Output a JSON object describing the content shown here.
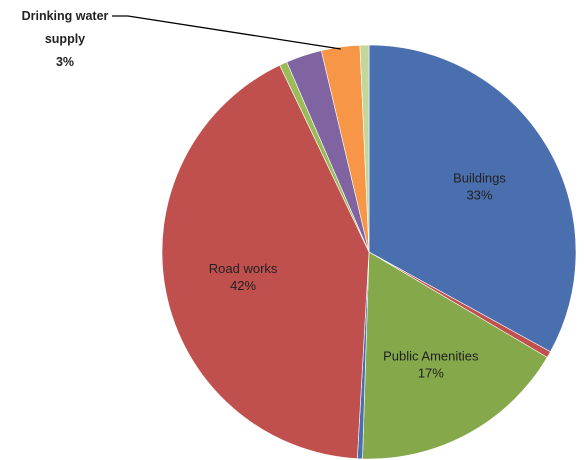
{
  "chart_data": {
    "type": "pie",
    "title": "",
    "start_angle_deg": 0,
    "direction": "clockwise",
    "slices": [
      {
        "name": "Buildings",
        "value": 33,
        "color": "#4a6fae",
        "label": {
          "name": "Buildings",
          "pct": "33%"
        }
      },
      {
        "name": "",
        "value": 0.5,
        "color": "#c0504d"
      },
      {
        "name": "Public Amenities",
        "value": 17,
        "color": "#84a84a",
        "label": {
          "name": "Public Amenities",
          "pct": "17%"
        }
      },
      {
        "name": "",
        "value": 0.4,
        "color": "#4a6fae"
      },
      {
        "name": "Road works",
        "value": 42,
        "color": "#c0504d",
        "label": {
          "name": "Road works",
          "pct": "42%"
        }
      },
      {
        "name": "",
        "value": 0.6,
        "color": "#9bbb59"
      },
      {
        "name": "",
        "value": 2.8,
        "color": "#8064a2"
      },
      {
        "name": "Drinking water supply",
        "value": 3,
        "color": "#f79646",
        "callout": {
          "lines": [
            "Drinking water",
            "supply",
            "3%"
          ]
        }
      },
      {
        "name": "",
        "value": 0.7,
        "color": "#c3d69b"
      }
    ]
  }
}
